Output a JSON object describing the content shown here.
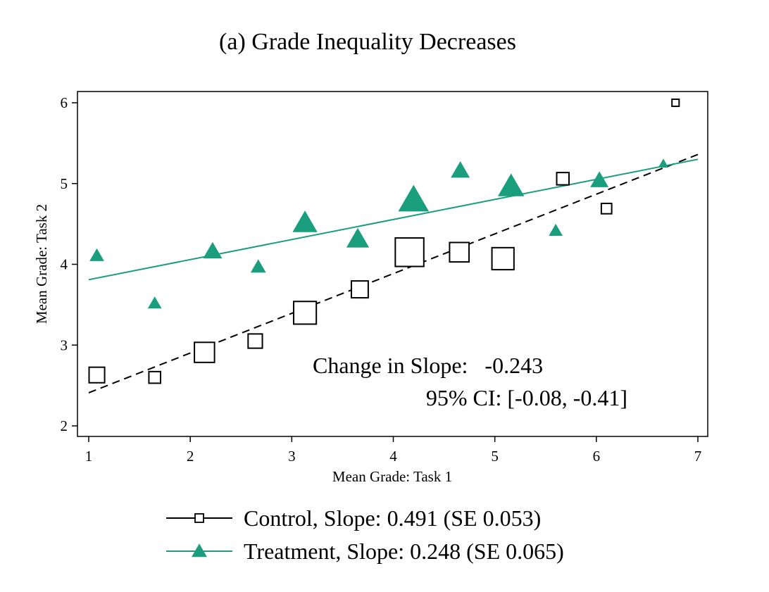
{
  "chart_data": {
    "type": "scatter",
    "title": "(a) Grade Inequality Decreases",
    "xlabel": "Mean Grade: Task 1",
    "ylabel": "Mean Grade: Task 2",
    "xlim": [
      1,
      7
    ],
    "ylim": [
      2,
      6
    ],
    "xticks": [
      1,
      2,
      3,
      4,
      5,
      6,
      7
    ],
    "yticks": [
      2,
      3,
      4,
      5,
      6
    ],
    "grid": false,
    "legend_position": "bottom",
    "series": [
      {
        "name": "Control, Slope: 0.491 (SE 0.053)",
        "marker": "hollow-square",
        "color": "#000000",
        "line_style": "dashed",
        "fit": {
          "x": [
            1,
            7
          ],
          "y": [
            2.41,
            5.36
          ]
        },
        "points": [
          {
            "x": 1.08,
            "y": 2.63,
            "weight": 2.4
          },
          {
            "x": 1.65,
            "y": 2.6,
            "weight": 1.8
          },
          {
            "x": 2.14,
            "y": 2.91,
            "weight": 3.1
          },
          {
            "x": 2.64,
            "y": 3.05,
            "weight": 2.2
          },
          {
            "x": 3.13,
            "y": 3.4,
            "weight": 3.5
          },
          {
            "x": 3.67,
            "y": 3.69,
            "weight": 2.6
          },
          {
            "x": 4.16,
            "y": 4.15,
            "weight": 4.4
          },
          {
            "x": 4.65,
            "y": 4.15,
            "weight": 3.0
          },
          {
            "x": 5.08,
            "y": 4.07,
            "weight": 3.4
          },
          {
            "x": 5.67,
            "y": 5.06,
            "weight": 1.9
          },
          {
            "x": 6.1,
            "y": 4.69,
            "weight": 1.6
          },
          {
            "x": 6.78,
            "y": 6.0,
            "weight": 1.1
          }
        ]
      },
      {
        "name": "Treatment, Slope: 0.248 (SE 0.065)",
        "marker": "filled-triangle",
        "color": "#1a9e7e",
        "line_style": "solid",
        "fit": {
          "x": [
            1,
            7
          ],
          "y": [
            3.81,
            5.3
          ]
        },
        "points": [
          {
            "x": 1.08,
            "y": 4.1,
            "weight": 2.0
          },
          {
            "x": 1.65,
            "y": 3.51,
            "weight": 1.9
          },
          {
            "x": 2.22,
            "y": 4.15,
            "weight": 2.6
          },
          {
            "x": 2.67,
            "y": 3.96,
            "weight": 2.1
          },
          {
            "x": 3.13,
            "y": 4.5,
            "weight": 3.4
          },
          {
            "x": 3.65,
            "y": 4.3,
            "weight": 3.1
          },
          {
            "x": 4.2,
            "y": 4.78,
            "weight": 4.2
          },
          {
            "x": 4.66,
            "y": 5.15,
            "weight": 2.6
          },
          {
            "x": 5.16,
            "y": 4.95,
            "weight": 3.6
          },
          {
            "x": 5.6,
            "y": 4.41,
            "weight": 1.9
          },
          {
            "x": 6.03,
            "y": 5.03,
            "weight": 2.5
          },
          {
            "x": 6.66,
            "y": 5.24,
            "weight": 1.4
          }
        ]
      }
    ],
    "annotations": [
      "Change in Slope:   -0.243",
      "95% CI: [-0.08, -0.41]"
    ]
  }
}
